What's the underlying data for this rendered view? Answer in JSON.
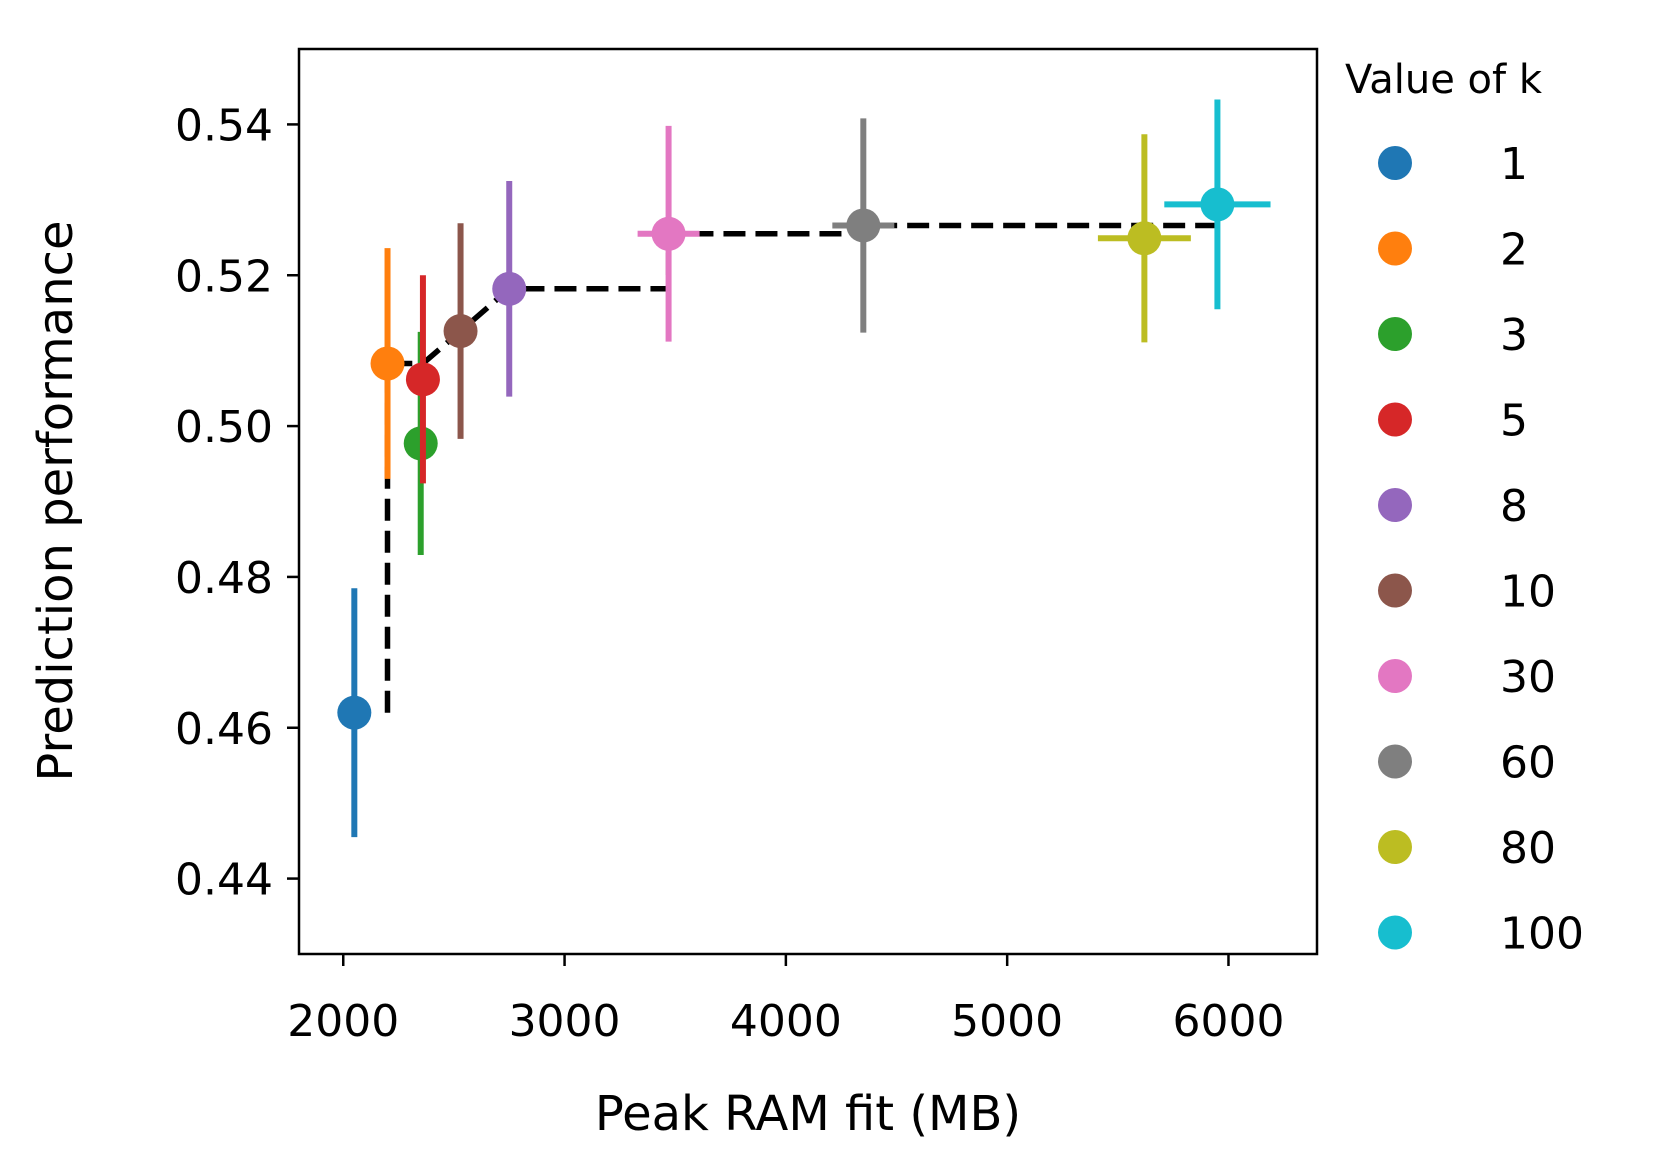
{
  "chart_data": {
    "type": "scatter",
    "title": "",
    "xlabel": "Peak RAM fit (MB)",
    "ylabel": "Prediction performance",
    "xlim": [
      1800,
      6400
    ],
    "ylim": [
      0.43,
      0.55
    ],
    "xticks": [
      2000,
      3000,
      4000,
      5000,
      6000
    ],
    "xtick_labels": [
      "2000",
      "3000",
      "4000",
      "5000",
      "6000"
    ],
    "yticks": [
      0.44,
      0.46,
      0.48,
      0.5,
      0.52,
      0.54
    ],
    "ytick_labels": [
      "0.44",
      "0.46",
      "0.48",
      "0.50",
      "0.52",
      "0.54"
    ],
    "grid": false,
    "legend": {
      "title": "Value of k",
      "placement": "outside-right"
    },
    "series": [
      {
        "name": "1",
        "color": "#1f77b4",
        "x": 2050,
        "y": 0.462,
        "y_err": 0.0165,
        "x_err": 0
      },
      {
        "name": "2",
        "color": "#ff7f0e",
        "x": 2200,
        "y": 0.5083,
        "y_err": 0.0153,
        "x_err": 0
      },
      {
        "name": "3",
        "color": "#2ca02c",
        "x": 2350,
        "y": 0.4977,
        "y_err": 0.0148,
        "x_err": 0
      },
      {
        "name": "5",
        "color": "#d62728",
        "x": 2360,
        "y": 0.5062,
        "y_err": 0.0138,
        "x_err": 0
      },
      {
        "name": "8",
        "color": "#9467bd",
        "x": 2750,
        "y": 0.5182,
        "y_err": 0.0143,
        "x_err": 0
      },
      {
        "name": "10",
        "color": "#8c564b",
        "x": 2530,
        "y": 0.5126,
        "y_err": 0.0143,
        "x_err": 0
      },
      {
        "name": "30",
        "color": "#e377c2",
        "x": 3470,
        "y": 0.5255,
        "y_err": 0.0143,
        "x_err": 140
      },
      {
        "name": "60",
        "color": "#7f7f7f",
        "x": 4350,
        "y": 0.5266,
        "y_err": 0.0142,
        "x_err": 140
      },
      {
        "name": "80",
        "color": "#bcbd22",
        "x": 5620,
        "y": 0.5249,
        "y_err": 0.0138,
        "x_err": 210
      },
      {
        "name": "100",
        "color": "#17becf",
        "x": 5950,
        "y": 0.5294,
        "y_err": 0.0139,
        "x_err": 240
      }
    ],
    "frontier_line": {
      "style": "dashed",
      "color": "#000000",
      "points": [
        [
          2200,
          0.462
        ],
        [
          2200,
          0.5083
        ],
        [
          2360,
          0.5083
        ],
        [
          2530,
          0.5126
        ],
        [
          2750,
          0.5182
        ],
        [
          3470,
          0.5182
        ],
        [
          3470,
          0.5255
        ],
        [
          4350,
          0.5255
        ],
        [
          4350,
          0.5266
        ],
        [
          5950,
          0.5266
        ],
        [
          5950,
          0.5294
        ]
      ]
    }
  }
}
